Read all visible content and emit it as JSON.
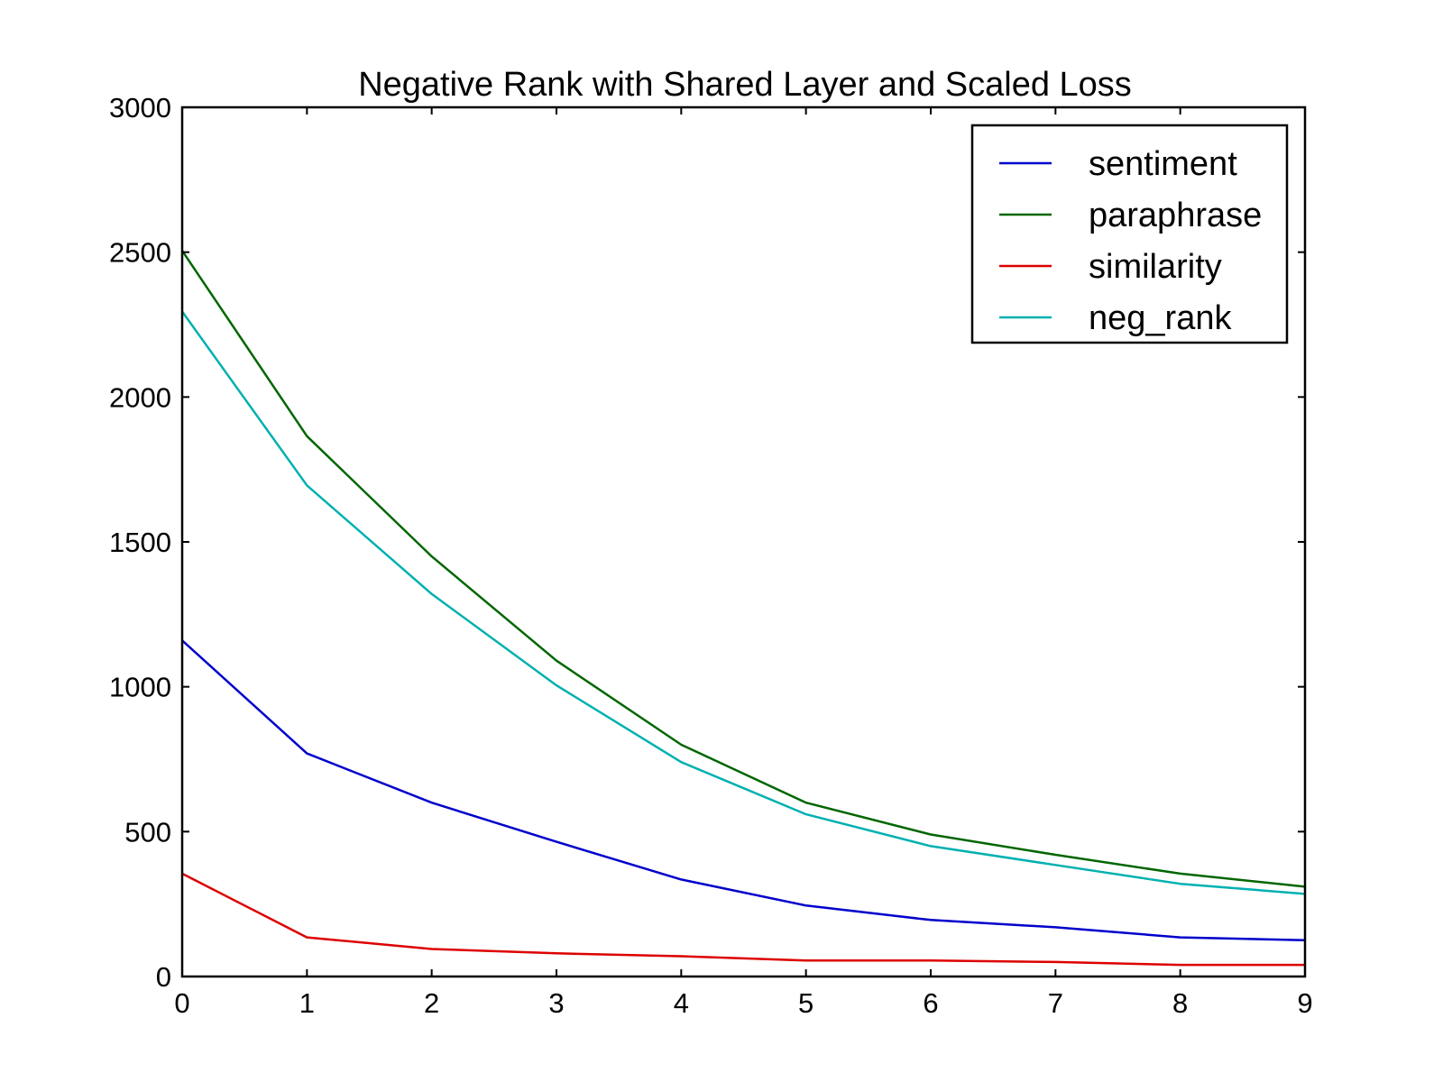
{
  "chart_data": {
    "type": "line",
    "title": "Negative Rank with Shared Layer and Scaled Loss",
    "xlabel": "",
    "ylabel": "",
    "x": [
      0,
      1,
      2,
      3,
      4,
      5,
      6,
      7,
      8,
      9
    ],
    "xlim": [
      0,
      9
    ],
    "ylim": [
      0,
      3000
    ],
    "xticks": [
      0,
      1,
      2,
      3,
      4,
      5,
      6,
      7,
      8,
      9
    ],
    "yticks": [
      0,
      500,
      1000,
      1500,
      2000,
      2500,
      3000
    ],
    "grid": false,
    "legend_position": "top-right",
    "series": [
      {
        "name": "sentiment",
        "color": "#0000cc",
        "values": [
          1160,
          770,
          600,
          465,
          335,
          245,
          195,
          170,
          135,
          125
        ]
      },
      {
        "name": "paraphrase",
        "color": "#006600",
        "values": [
          2505,
          1865,
          1450,
          1090,
          800,
          600,
          490,
          420,
          355,
          310
        ]
      },
      {
        "name": "similarity",
        "color": "#dd0000",
        "values": [
          355,
          135,
          95,
          80,
          70,
          55,
          55,
          50,
          40,
          40
        ]
      },
      {
        "name": "neg_rank",
        "color": "#00b0b0",
        "values": [
          2295,
          1695,
          1320,
          1005,
          740,
          560,
          450,
          385,
          320,
          285
        ]
      }
    ]
  }
}
